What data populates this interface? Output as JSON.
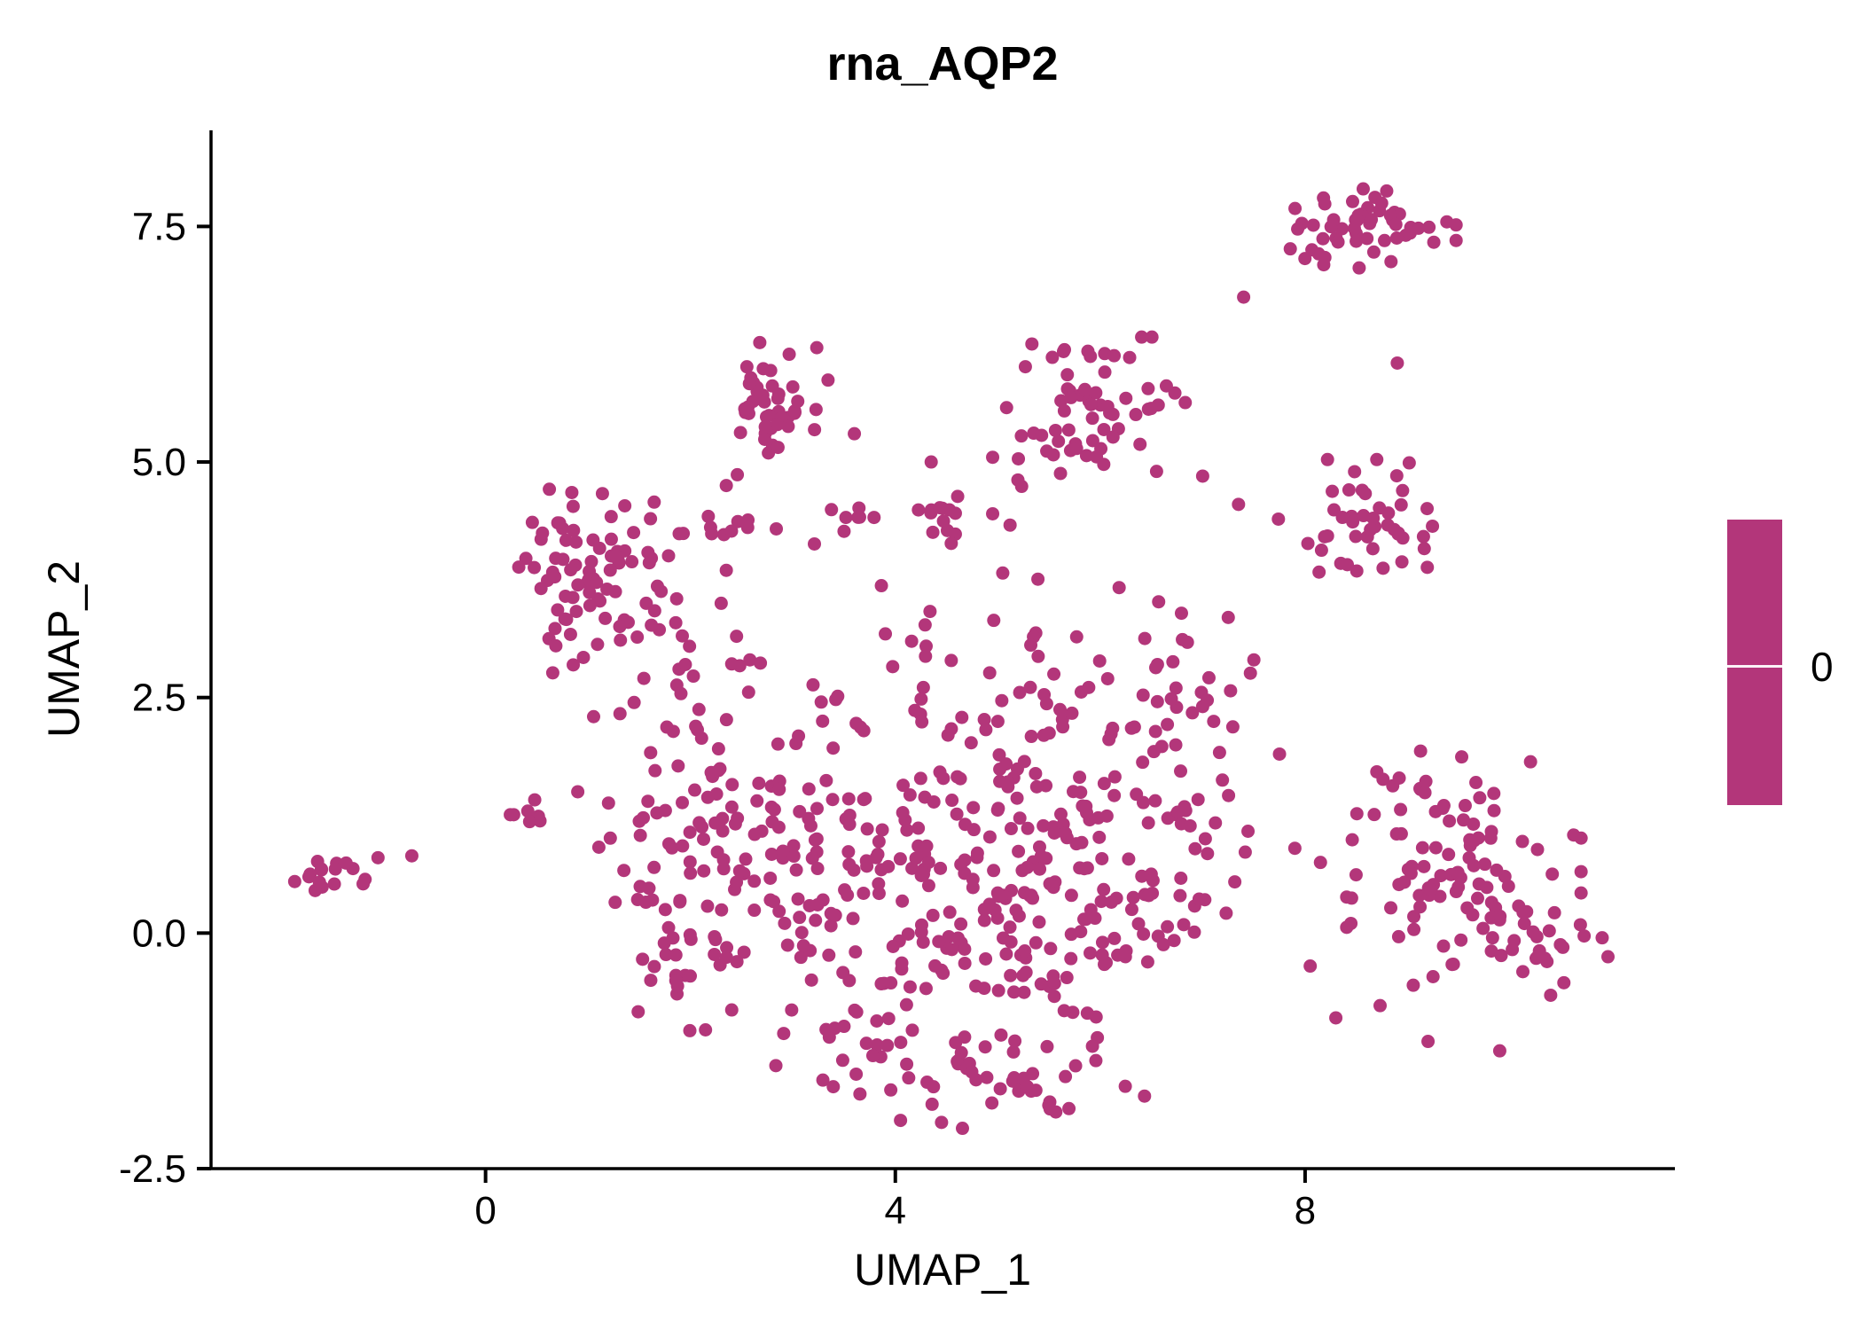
{
  "title": "rna_AQP2",
  "axes": {
    "x": {
      "label": "UMAP_1",
      "tick_labels": [
        "0",
        "4",
        "8"
      ],
      "tick_values": [
        0,
        4,
        8
      ]
    },
    "y": {
      "label": "UMAP_2",
      "tick_labels": [
        "-2.5",
        "0.0",
        "2.5",
        "5.0",
        "7.5"
      ],
      "tick_values": [
        -2.5,
        0.0,
        2.5,
        5.0,
        7.5
      ]
    }
  },
  "legend": {
    "type": "colorbar",
    "tick_label": "0",
    "color": "#B3367A"
  },
  "chart_data": {
    "type": "scatter",
    "title": "rna_AQP2",
    "xlabel": "UMAP_1",
    "ylabel": "UMAP_2",
    "xlim": [
      -2.68,
      11.61
    ],
    "ylim": [
      -2.5,
      8.52
    ],
    "x_ticks": [
      0,
      4,
      8
    ],
    "y_ticks": [
      -2.5,
      0.0,
      2.5,
      5.0,
      7.5
    ],
    "grid": false,
    "legend_position": "right",
    "expression_value_shown": 0,
    "point_color": "#B3367A",
    "point_radius": 7.5,
    "seed": 42,
    "clusters_format": "[center_x, center_y, sd_x, sd_y, n_points]",
    "clusters": [
      [
        -1.55,
        0.65,
        0.17,
        0.09,
        16
      ],
      [
        0.42,
        1.27,
        0.12,
        0.07,
        7
      ],
      [
        0.95,
        4.05,
        0.38,
        0.33,
        55
      ],
      [
        1.35,
        3.35,
        0.33,
        0.3,
        22
      ],
      [
        0.75,
        3.05,
        0.18,
        0.25,
        9
      ],
      [
        1.55,
        2.45,
        0.28,
        0.22,
        7
      ],
      [
        2.55,
        4.35,
        0.3,
        0.1,
        12
      ],
      [
        3.5,
        4.4,
        0.18,
        0.1,
        7
      ],
      [
        4.45,
        4.4,
        0.22,
        0.12,
        13
      ],
      [
        2.85,
        5.75,
        0.27,
        0.26,
        40
      ],
      [
        2.6,
        5.15,
        0.13,
        0.13,
        5
      ],
      [
        5.95,
        5.6,
        0.4,
        0.33,
        58
      ],
      [
        5.42,
        5.0,
        0.18,
        0.18,
        7
      ],
      [
        8.55,
        7.5,
        0.42,
        0.2,
        55
      ],
      [
        8.55,
        4.3,
        0.38,
        0.33,
        45
      ],
      [
        2.0,
        1.35,
        0.42,
        0.38,
        32
      ],
      [
        1.5,
        0.55,
        0.28,
        0.42,
        18
      ],
      [
        2.0,
        -0.2,
        0.38,
        0.38,
        28
      ],
      [
        2.6,
        0.6,
        0.33,
        0.45,
        24
      ],
      [
        3.3,
        0.2,
        0.42,
        0.55,
        38
      ],
      [
        3.0,
        1.4,
        0.33,
        0.28,
        18
      ],
      [
        4.0,
        1.0,
        0.38,
        0.45,
        33
      ],
      [
        4.2,
        -0.35,
        0.42,
        0.45,
        33
      ],
      [
        4.8,
        0.4,
        0.38,
        0.45,
        33
      ],
      [
        5.0,
        1.5,
        0.42,
        0.38,
        33
      ],
      [
        5.6,
        0.8,
        0.38,
        0.45,
        33
      ],
      [
        5.6,
        -0.45,
        0.42,
        0.42,
        33
      ],
      [
        6.3,
        0.3,
        0.38,
        0.45,
        28
      ],
      [
        6.3,
        1.4,
        0.33,
        0.38,
        24
      ],
      [
        6.85,
        2.25,
        0.28,
        0.33,
        22
      ],
      [
        7.0,
        1.0,
        0.27,
        0.45,
        18
      ],
      [
        4.6,
        -1.5,
        0.65,
        0.26,
        28
      ],
      [
        5.6,
        -1.6,
        0.45,
        0.22,
        18
      ],
      [
        3.6,
        -1.2,
        0.38,
        0.22,
        14
      ],
      [
        4.5,
        2.3,
        0.55,
        0.24,
        18
      ],
      [
        5.85,
        2.4,
        0.38,
        0.22,
        11
      ],
      [
        2.4,
        2.6,
        0.45,
        0.38,
        11
      ],
      [
        6.35,
        3.4,
        0.25,
        0.3,
        8
      ],
      [
        5.35,
        3.3,
        0.3,
        0.3,
        9
      ],
      [
        4.2,
        3.1,
        0.35,
        0.3,
        8
      ],
      [
        3.4,
        2.3,
        0.3,
        0.25,
        8
      ],
      [
        9.55,
        0.55,
        0.52,
        0.6,
        95
      ],
      [
        10.35,
        -0.1,
        0.28,
        0.33,
        18
      ],
      [
        8.9,
        1.5,
        0.24,
        0.28,
        11
      ]
    ],
    "extra_points": [
      [
        -1.05,
        0.8
      ],
      [
        -0.72,
        0.82
      ],
      [
        0.9,
        1.5
      ],
      [
        1.2,
        1.38
      ],
      [
        1.95,
        2.85
      ],
      [
        2.3,
        3.5
      ],
      [
        2.45,
        3.15
      ],
      [
        2.35,
        3.85
      ],
      [
        2.35,
        4.75
      ],
      [
        3.6,
        5.3
      ],
      [
        4.35,
        5.0
      ],
      [
        4.95,
        5.05
      ],
      [
        4.95,
        4.45
      ],
      [
        5.12,
        4.33
      ],
      [
        6.55,
        4.9
      ],
      [
        7.0,
        4.85
      ],
      [
        7.35,
        4.55
      ],
      [
        7.4,
        6.75
      ],
      [
        8.9,
        6.05
      ],
      [
        7.5,
        2.9
      ],
      [
        7.75,
        1.9
      ],
      [
        7.9,
        0.9
      ],
      [
        8.15,
        0.75
      ],
      [
        8.3,
        -0.9
      ],
      [
        8.05,
        -0.35
      ],
      [
        7.25,
        3.35
      ],
      [
        9.2,
        -1.15
      ],
      [
        9.9,
        -1.25
      ],
      [
        10.9,
        -0.05
      ]
    ]
  }
}
